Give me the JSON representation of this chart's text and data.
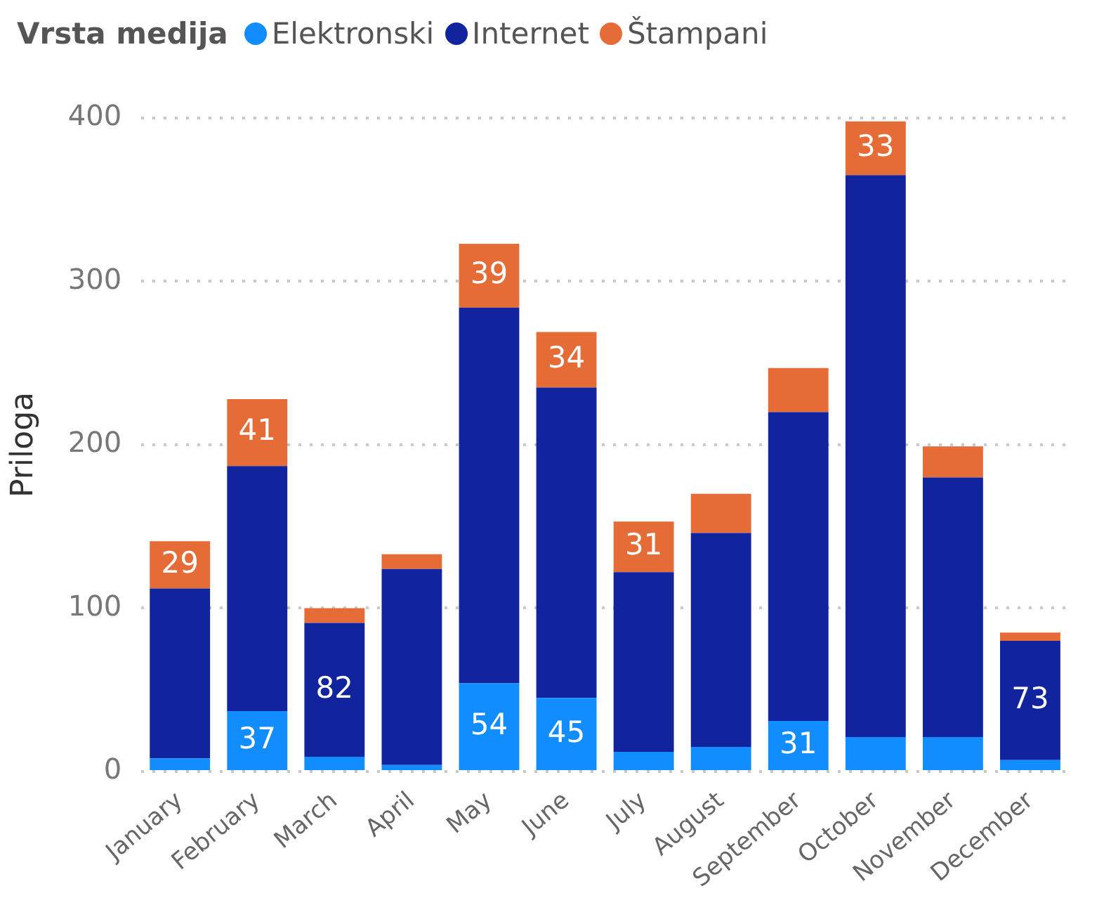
{
  "chart_data": {
    "type": "bar",
    "stacked": true,
    "ylabel": "Priloga",
    "legend_title": "Vrsta medija",
    "legend": "top left",
    "marker": "circle",
    "grid": "y",
    "line_style": "dotted",
    "categories": [
      "January",
      "February",
      "March",
      "April",
      "May",
      "June",
      "July",
      "August",
      "September",
      "October",
      "November",
      "December"
    ],
    "ylim": [
      0,
      400
    ],
    "yticks": [
      0,
      100,
      200,
      300,
      400
    ],
    "series": [
      {
        "name": "Elektronski",
        "color": "#118dff",
        "values": [
          8,
          37,
          9,
          4,
          54,
          45,
          12,
          15,
          31,
          21,
          21,
          7
        ],
        "value_labels": [
          null,
          "37",
          null,
          null,
          "54",
          "45",
          null,
          null,
          "31",
          null,
          null,
          null
        ]
      },
      {
        "name": "Internet",
        "color": "#12239e",
        "values": [
          104,
          150,
          82,
          120,
          230,
          190,
          110,
          131,
          189,
          344,
          159,
          73
        ],
        "value_labels": [
          null,
          null,
          "82",
          null,
          null,
          null,
          null,
          null,
          null,
          null,
          null,
          "73"
        ]
      },
      {
        "name": "Štampani",
        "color": "#e66c37",
        "values": [
          29,
          41,
          9,
          9,
          39,
          34,
          31,
          24,
          27,
          33,
          19,
          5
        ],
        "value_labels": [
          "29",
          "41",
          null,
          null,
          "39",
          "34",
          "31",
          null,
          null,
          "33",
          null,
          null
        ]
      }
    ]
  }
}
